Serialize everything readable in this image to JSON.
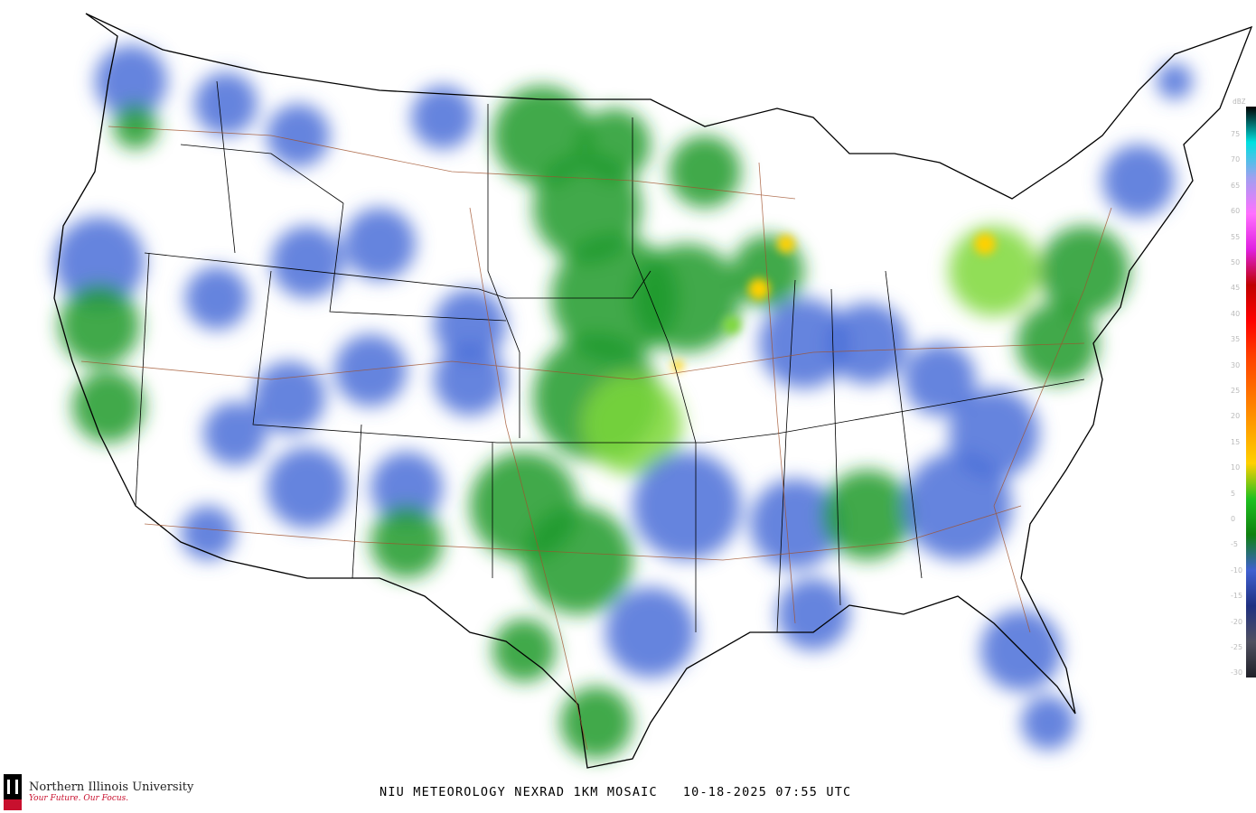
{
  "title": "NIU METEOROLOGY NEXRAD 1KM MOSAIC",
  "date": "10-18-2025",
  "time": "07:55 UTC",
  "logo": {
    "name": "Northern Illinois University",
    "tagline": "Your Future. Our Focus.",
    "mark": "NIU"
  },
  "legend": {
    "unit": "dBZ",
    "labels": [
      "75",
      "70",
      "65",
      "60",
      "55",
      "50",
      "45",
      "40",
      "35",
      "30",
      "25",
      "20",
      "15",
      "10",
      "5",
      "0",
      "-5",
      "-10",
      "-15",
      "-20",
      "-25",
      "-30"
    ],
    "colors": [
      "#000000",
      "#00e0e0",
      "#a0a0f0",
      "#ff70ff",
      "#e020e0",
      "#c00000",
      "#ff0000",
      "#ff4000",
      "#ff7000",
      "#ffa000",
      "#ffd000",
      "#20c020",
      "#108010",
      "#4060d0",
      "#203080",
      "#505060",
      "#202028"
    ]
  },
  "colors": {
    "radar_light": "#4a6fd8",
    "radar_moderate": "#1f9a2a",
    "radar_heavy": "#7ed83a",
    "radar_intense": "#ffd000",
    "roads": "#a0522d",
    "borders": "#000000"
  }
}
